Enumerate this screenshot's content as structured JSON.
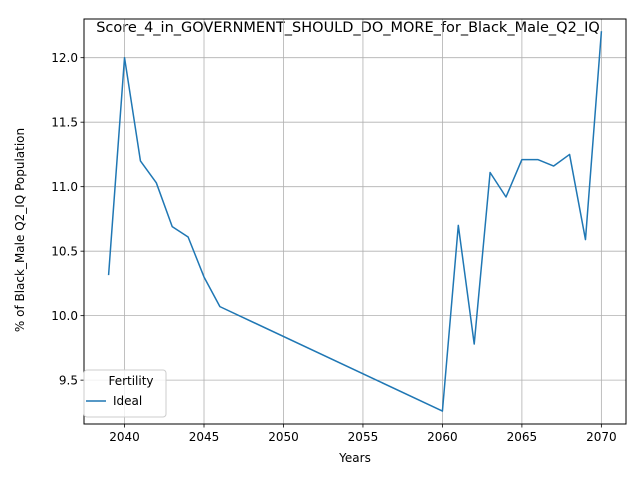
{
  "chart_data": {
    "type": "line",
    "title": "Score_4_in_GOVERNMENT_SHOULD_DO_MORE_for_Black_Male_Q2_IQ",
    "xlabel": "Years",
    "ylabel": "% of Black_Male Q2_IQ Population",
    "xlim": [
      2037.45,
      2071.55
    ],
    "ylim": [
      9.16,
      12.3
    ],
    "xticks": [
      2040,
      2045,
      2050,
      2055,
      2060,
      2065,
      2070
    ],
    "yticks": [
      9.5,
      10.0,
      10.5,
      11.0,
      11.5,
      12.0
    ],
    "xtick_labels": [
      "2040",
      "2045",
      "2050",
      "2055",
      "2060",
      "2065",
      "2070"
    ],
    "ytick_labels": [
      "9.5",
      "10.0",
      "10.5",
      "11.0",
      "11.5",
      "12.0"
    ],
    "grid": true,
    "legend": {
      "title": "Fertility",
      "placement": "lower-left"
    },
    "series": [
      {
        "name": "Ideal",
        "color": "#1f77b4",
        "x": [
          2039,
          2040,
          2041,
          2042,
          2043,
          2044,
          2045,
          2046,
          2060,
          2061,
          2062,
          2063,
          2064,
          2065,
          2066,
          2067,
          2068,
          2069,
          2070
        ],
        "y": [
          10.32,
          12.0,
          11.2,
          11.03,
          10.69,
          10.61,
          10.3,
          10.07,
          9.26,
          10.7,
          9.78,
          11.11,
          10.92,
          11.21,
          11.21,
          11.16,
          11.25,
          10.59,
          12.2
        ]
      }
    ]
  }
}
